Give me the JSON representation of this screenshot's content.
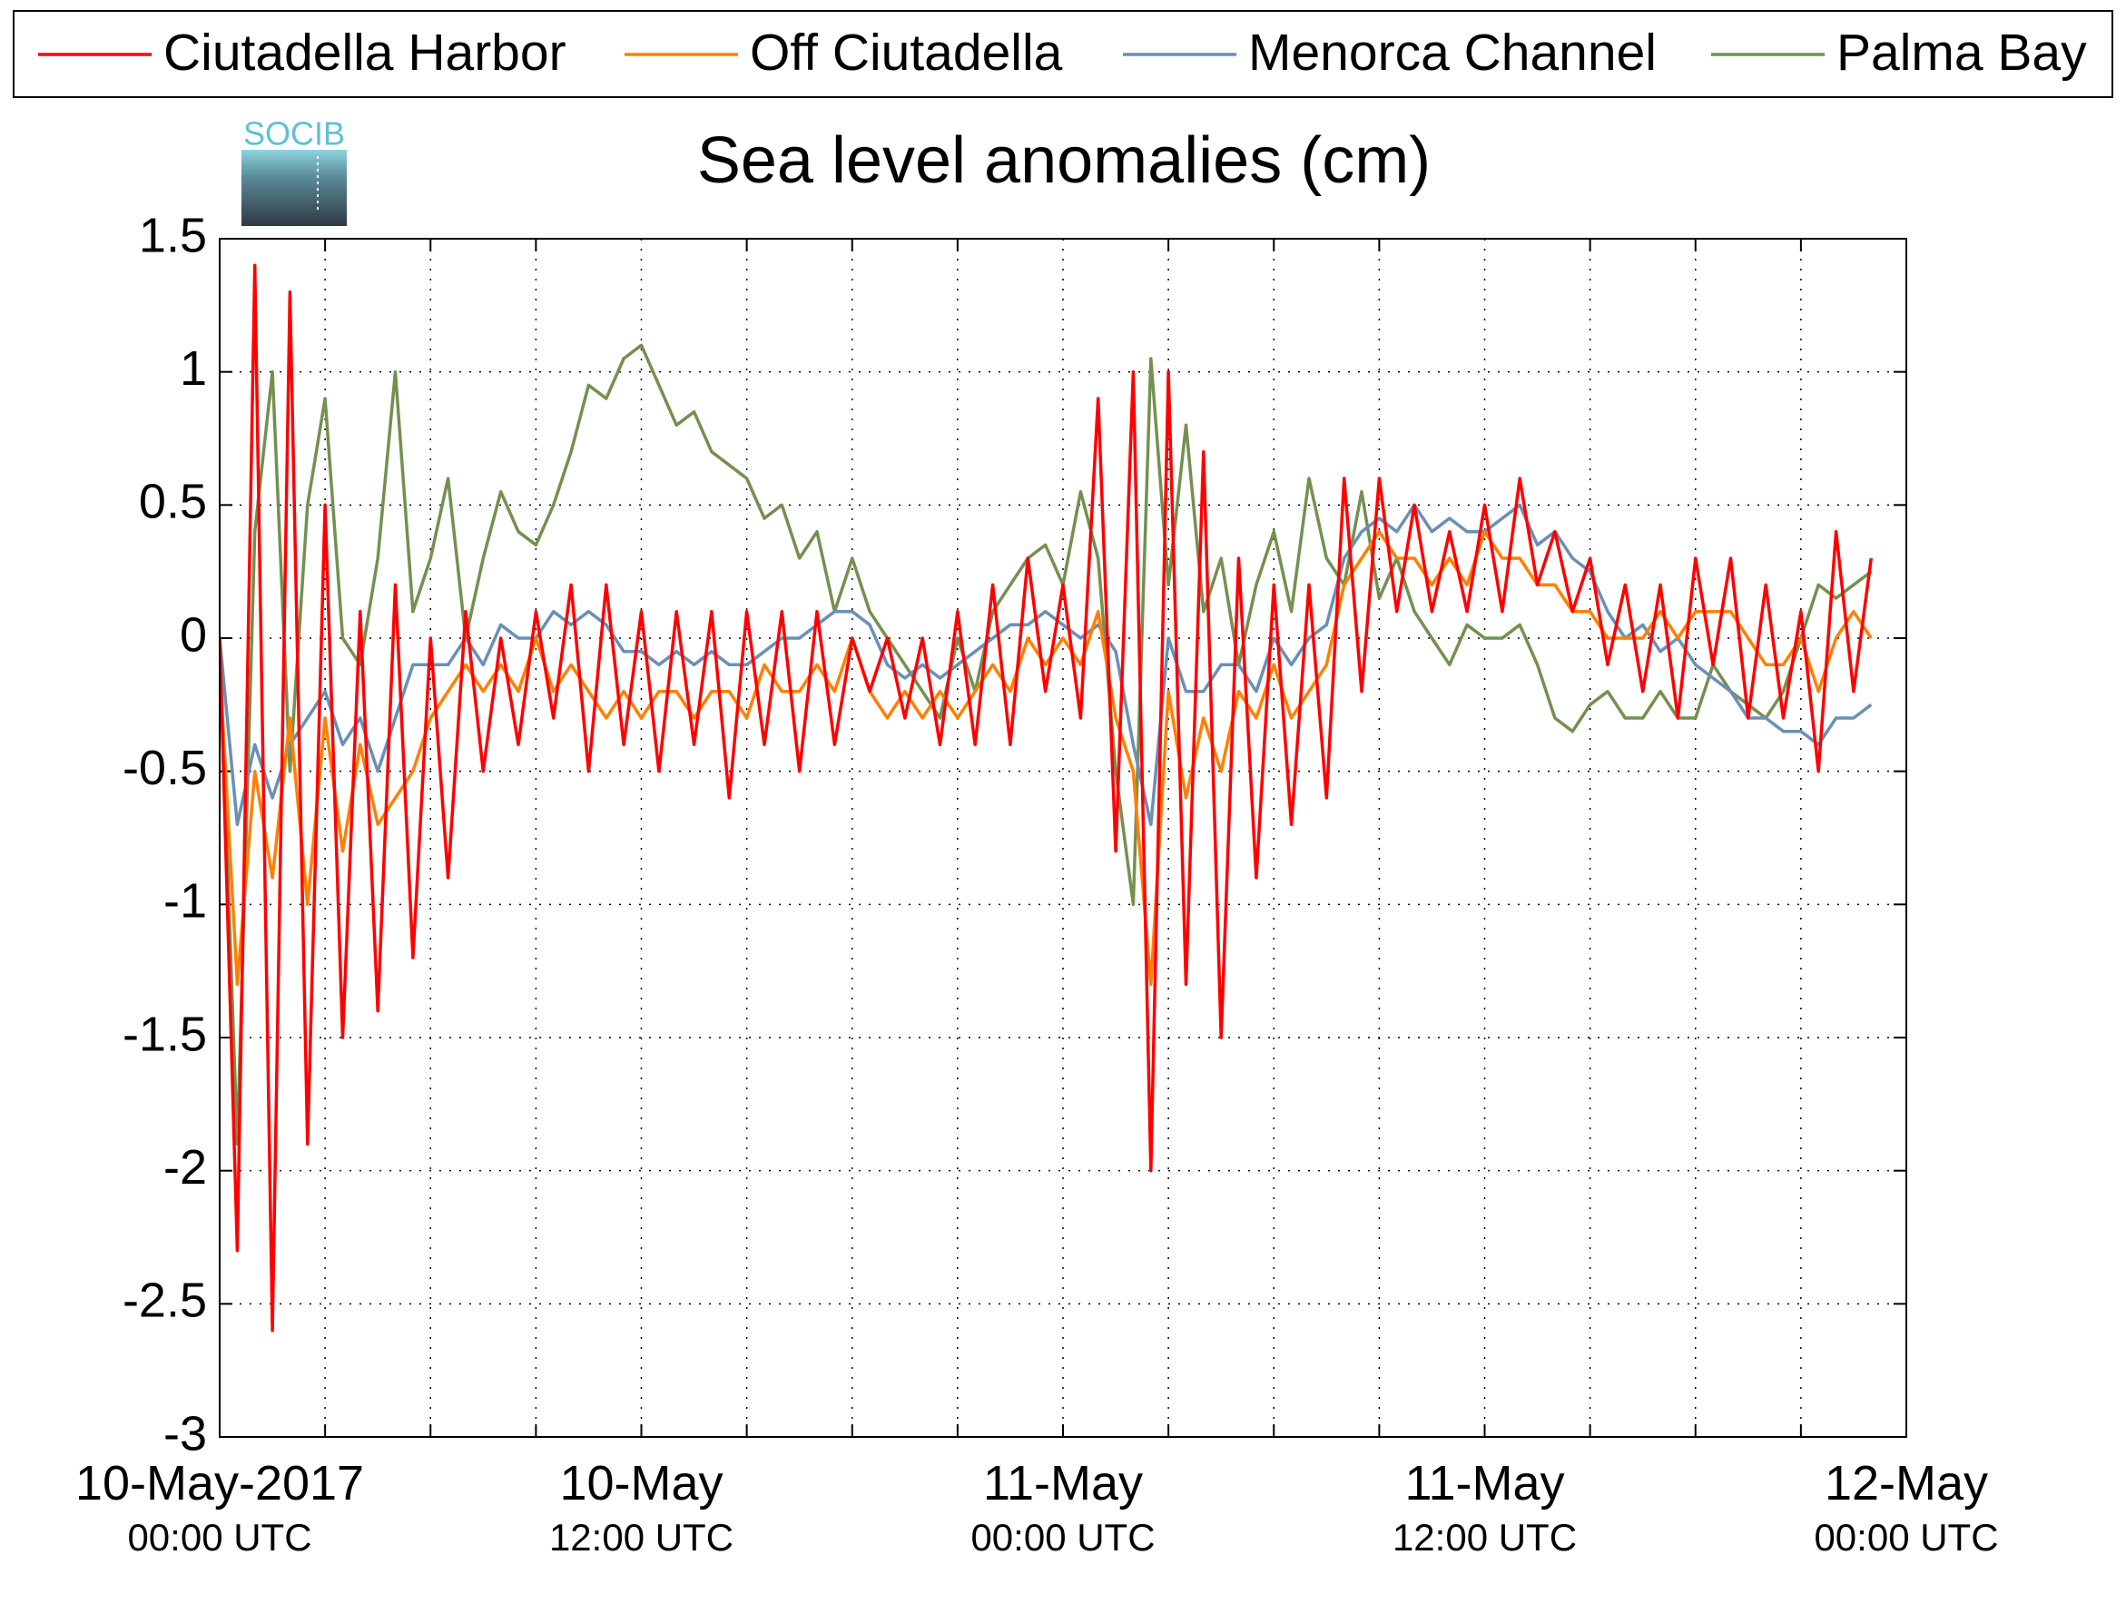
{
  "logo_text": "SOCIB",
  "chart_data": {
    "type": "line",
    "title": "Sea level anomalies (cm)",
    "x": [
      0,
      0.5,
      1,
      1.5,
      2,
      2.5,
      3,
      3.5,
      4,
      4.5,
      5,
      5.5,
      6,
      6.5,
      7,
      7.5,
      8,
      8.5,
      9,
      9.5,
      10,
      10.5,
      11,
      11.5,
      12,
      12.5,
      13,
      13.5,
      14,
      14.5,
      15,
      15.5,
      16,
      16.5,
      17,
      17.5,
      18,
      18.5,
      19,
      19.5,
      20,
      20.5,
      21,
      21.5,
      22,
      22.5,
      23,
      23.5,
      24,
      24.5,
      25,
      25.5,
      26,
      26.5,
      27,
      27.5,
      28,
      28.5,
      29,
      29.5,
      30,
      30.5,
      31,
      31.5,
      32,
      32.5,
      33,
      33.5,
      34,
      34.5,
      35,
      35.5,
      36,
      36.5,
      37,
      37.5,
      38,
      38.5,
      39,
      39.5,
      40,
      40.5,
      41,
      41.5,
      42,
      42.5,
      43,
      43.5,
      44,
      44.5,
      45,
      45.5,
      46,
      46.5,
      47
    ],
    "series": [
      {
        "name": "Ciutadella Harbor",
        "color": "#ff0000",
        "values": [
          0,
          -2.3,
          1.4,
          -2.6,
          1.3,
          -1.9,
          0.5,
          -1.5,
          0.1,
          -1.4,
          0.2,
          -1.2,
          0,
          -0.9,
          0.1,
          -0.5,
          0,
          -0.4,
          0.1,
          -0.3,
          0.2,
          -0.5,
          0.2,
          -0.4,
          0.1,
          -0.5,
          0.1,
          -0.4,
          0.1,
          -0.6,
          0.1,
          -0.4,
          0.1,
          -0.5,
          0.1,
          -0.4,
          0,
          -0.2,
          0,
          -0.3,
          0,
          -0.4,
          0.1,
          -0.4,
          0.2,
          -0.4,
          0.3,
          -0.2,
          0.2,
          -0.3,
          0.9,
          -0.8,
          1.0,
          -2.0,
          1.0,
          -1.3,
          0.7,
          -1.5,
          0.3,
          -0.9,
          0.2,
          -0.7,
          0.2,
          -0.6,
          0.6,
          -0.2,
          0.6,
          0.1,
          0.5,
          0.1,
          0.4,
          0.1,
          0.5,
          0.1,
          0.6,
          0.2,
          0.4,
          0.1,
          0.3,
          -0.1,
          0.2,
          -0.2,
          0.2,
          -0.3,
          0.3,
          -0.1,
          0.3,
          -0.3,
          0.2,
          -0.3,
          0.1,
          -0.5,
          0.4,
          -0.2,
          0.3
        ]
      },
      {
        "name": "Off Ciutadella",
        "color": "#ff8000",
        "values": [
          -0.1,
          -1.3,
          -0.5,
          -0.9,
          -0.3,
          -1.0,
          -0.3,
          -0.8,
          -0.4,
          -0.7,
          -0.6,
          -0.5,
          -0.3,
          -0.2,
          -0.1,
          -0.2,
          -0.1,
          -0.2,
          0,
          -0.2,
          -0.1,
          -0.2,
          -0.3,
          -0.2,
          -0.3,
          -0.2,
          -0.2,
          -0.3,
          -0.2,
          -0.2,
          -0.3,
          -0.1,
          -0.2,
          -0.2,
          -0.1,
          -0.2,
          0,
          -0.2,
          -0.3,
          -0.2,
          -0.3,
          -0.2,
          -0.3,
          -0.2,
          -0.1,
          -0.2,
          0,
          -0.1,
          0,
          -0.1,
          0.1,
          -0.3,
          -0.5,
          -1.3,
          -0.2,
          -0.6,
          -0.3,
          -0.5,
          -0.2,
          -0.3,
          -0.1,
          -0.3,
          -0.2,
          -0.1,
          0.2,
          0.3,
          0.4,
          0.3,
          0.3,
          0.2,
          0.3,
          0.2,
          0.4,
          0.3,
          0.3,
          0.2,
          0.2,
          0.1,
          0.1,
          0,
          0,
          0,
          0.1,
          0,
          0.1,
          0.1,
          0.1,
          0,
          -0.1,
          -0.1,
          0,
          -0.2,
          0,
          0.1,
          0
        ]
      },
      {
        "name": "Menorca Channel",
        "color": "#6a8fb8",
        "values": [
          0,
          -0.7,
          -0.4,
          -0.6,
          -0.4,
          -0.3,
          -0.2,
          -0.4,
          -0.3,
          -0.5,
          -0.3,
          -0.1,
          -0.1,
          -0.1,
          0,
          -0.1,
          0.05,
          0,
          0,
          0.1,
          0.05,
          0.1,
          0.05,
          -0.05,
          -0.05,
          -0.1,
          -0.05,
          -0.1,
          -0.05,
          -0.1,
          -0.1,
          -0.05,
          0,
          0,
          0.05,
          0.1,
          0.1,
          0.05,
          -0.1,
          -0.15,
          -0.1,
          -0.15,
          -0.1,
          -0.05,
          0,
          0.05,
          0.05,
          0.1,
          0.05,
          0,
          0.05,
          -0.05,
          -0.4,
          -0.7,
          0,
          -0.2,
          -0.2,
          -0.1,
          -0.1,
          -0.2,
          0,
          -0.1,
          0,
          0.05,
          0.3,
          0.4,
          0.45,
          0.4,
          0.5,
          0.4,
          0.45,
          0.4,
          0.4,
          0.45,
          0.5,
          0.35,
          0.4,
          0.3,
          0.25,
          0.1,
          0,
          0.05,
          -0.05,
          0,
          -0.1,
          -0.15,
          -0.2,
          -0.3,
          -0.3,
          -0.35,
          -0.35,
          -0.4,
          -0.3,
          -0.3,
          -0.25
        ]
      },
      {
        "name": "Palma Bay",
        "color": "#74904f",
        "values": [
          0,
          -1.9,
          0.4,
          1.0,
          -0.5,
          0.5,
          0.9,
          0,
          -0.1,
          0.3,
          1.0,
          0.1,
          0.3,
          0.6,
          0,
          0.3,
          0.55,
          0.4,
          0.35,
          0.5,
          0.7,
          0.95,
          0.9,
          1.05,
          1.1,
          0.95,
          0.8,
          0.85,
          0.7,
          0.65,
          0.6,
          0.45,
          0.5,
          0.3,
          0.4,
          0.1,
          0.3,
          0.1,
          0,
          -0.1,
          -0.2,
          -0.3,
          0,
          -0.2,
          0.1,
          0.2,
          0.3,
          0.35,
          0.2,
          0.55,
          0.3,
          -0.5,
          -1.0,
          1.05,
          0.2,
          0.8,
          0.1,
          0.3,
          -0.1,
          0.2,
          0.4,
          0.1,
          0.6,
          0.3,
          0.2,
          0.55,
          0.15,
          0.3,
          0.1,
          0,
          -0.1,
          0.05,
          0,
          0,
          0.05,
          -0.1,
          -0.3,
          -0.35,
          -0.25,
          -0.2,
          -0.3,
          -0.3,
          -0.2,
          -0.3,
          -0.3,
          -0.1,
          -0.2,
          -0.25,
          -0.3,
          -0.2,
          0,
          0.2,
          0.15,
          0.2,
          0.25
        ]
      }
    ],
    "xlim": [
      0,
      48
    ],
    "xticks": [
      {
        "value": 0,
        "label": "10-May-2017 00:00 UTC"
      },
      {
        "value": 12,
        "label": "10-May 12:00 UTC"
      },
      {
        "value": 24,
        "label": "11-May 00:00 UTC"
      },
      {
        "value": 36,
        "label": "11-May 12:00 UTC"
      },
      {
        "value": 48,
        "label": "12-May 00:00 UTC"
      }
    ],
    "xminorticks": [
      3,
      6,
      9,
      15,
      18,
      21,
      27,
      30,
      33,
      39,
      42,
      45
    ],
    "ylim": [
      -3,
      1.5
    ],
    "yticks": [
      -3,
      -2.5,
      -2,
      -1.5,
      -1,
      -0.5,
      0,
      0.5,
      1,
      1.5
    ],
    "grid": true,
    "legend": "top"
  }
}
